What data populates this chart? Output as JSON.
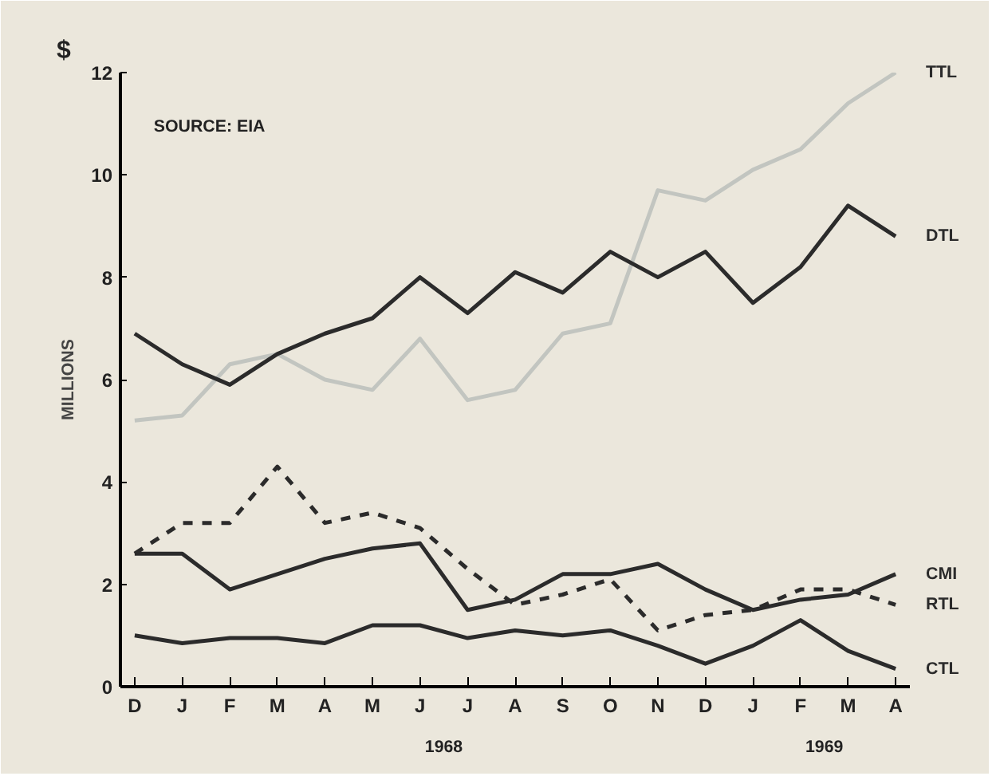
{
  "chart_data": {
    "type": "line",
    "ylabel": "MILLIONS",
    "annotations": [
      "SOURCE: EIA",
      "$",
      "1968",
      "1969"
    ],
    "categories": [
      "D",
      "J",
      "F",
      "M",
      "A",
      "M",
      "J",
      "J",
      "A",
      "S",
      "O",
      "N",
      "D",
      "J",
      "F",
      "M",
      "A"
    ],
    "ylim": [
      0,
      12
    ],
    "yticks": [
      0,
      2,
      4,
      6,
      8,
      10,
      12
    ],
    "grid": false,
    "series": [
      {
        "name": "TTL",
        "color": "#c2c5c0",
        "values": [
          5.2,
          5.3,
          6.3,
          6.5,
          6.0,
          5.8,
          6.8,
          5.6,
          5.8,
          6.9,
          7.1,
          9.7,
          9.5,
          10.1,
          10.5,
          11.4,
          12.0
        ]
      },
      {
        "name": "DTL",
        "color": "#2b2b2b",
        "values": [
          6.9,
          6.3,
          5.9,
          6.5,
          6.9,
          7.2,
          8.0,
          7.3,
          8.1,
          7.7,
          8.5,
          8.0,
          8.5,
          7.5,
          8.2,
          9.4,
          8.8
        ]
      },
      {
        "name": "CMI",
        "color": "#2b2b2b",
        "values": [
          2.6,
          2.6,
          1.9,
          2.2,
          2.5,
          2.7,
          2.8,
          1.5,
          1.7,
          2.2,
          2.2,
          2.4,
          1.9,
          1.5,
          1.7,
          1.8,
          2.2
        ]
      },
      {
        "name": "RTL",
        "color": "#2b2b2b",
        "line_style": "dashed",
        "values": [
          2.6,
          3.2,
          3.2,
          4.3,
          3.2,
          3.4,
          3.1,
          2.3,
          1.6,
          1.8,
          2.1,
          1.1,
          1.4,
          1.5,
          1.9,
          1.9,
          1.6
        ]
      },
      {
        "name": "CTL",
        "color": "#2b2b2b",
        "values": [
          1.0,
          0.85,
          0.95,
          0.95,
          0.85,
          1.2,
          1.2,
          0.95,
          1.1,
          1.0,
          1.1,
          0.8,
          0.45,
          0.8,
          1.3,
          0.7,
          0.35
        ]
      }
    ]
  }
}
